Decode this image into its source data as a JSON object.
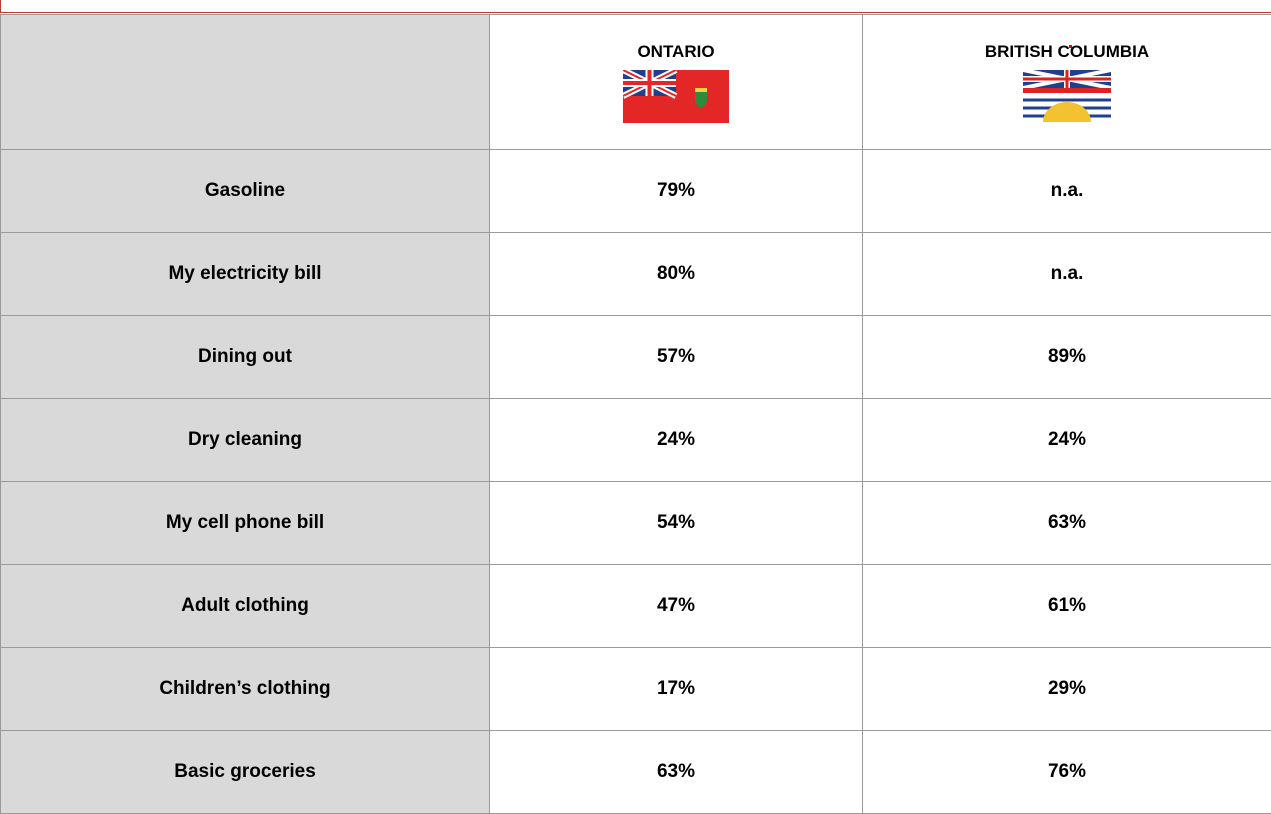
{
  "table": {
    "columns": [
      "ONTARIO",
      "BRITISH COLUMBIA"
    ],
    "rows": [
      [
        "Gasoline",
        "79%",
        "n.a."
      ],
      [
        "My electricity bill",
        "80%",
        "n.a."
      ],
      [
        "Dining out",
        "57%",
        "89%"
      ],
      [
        "Dry cleaning",
        "24%",
        "24%"
      ],
      [
        "My cell phone bill",
        "54%",
        "63%"
      ],
      [
        "Adult clothing",
        "47%",
        "61%"
      ],
      [
        "Children’s clothing",
        "17%",
        "29%"
      ],
      [
        "Basic groceries",
        "63%",
        "76%"
      ]
    ]
  }
}
